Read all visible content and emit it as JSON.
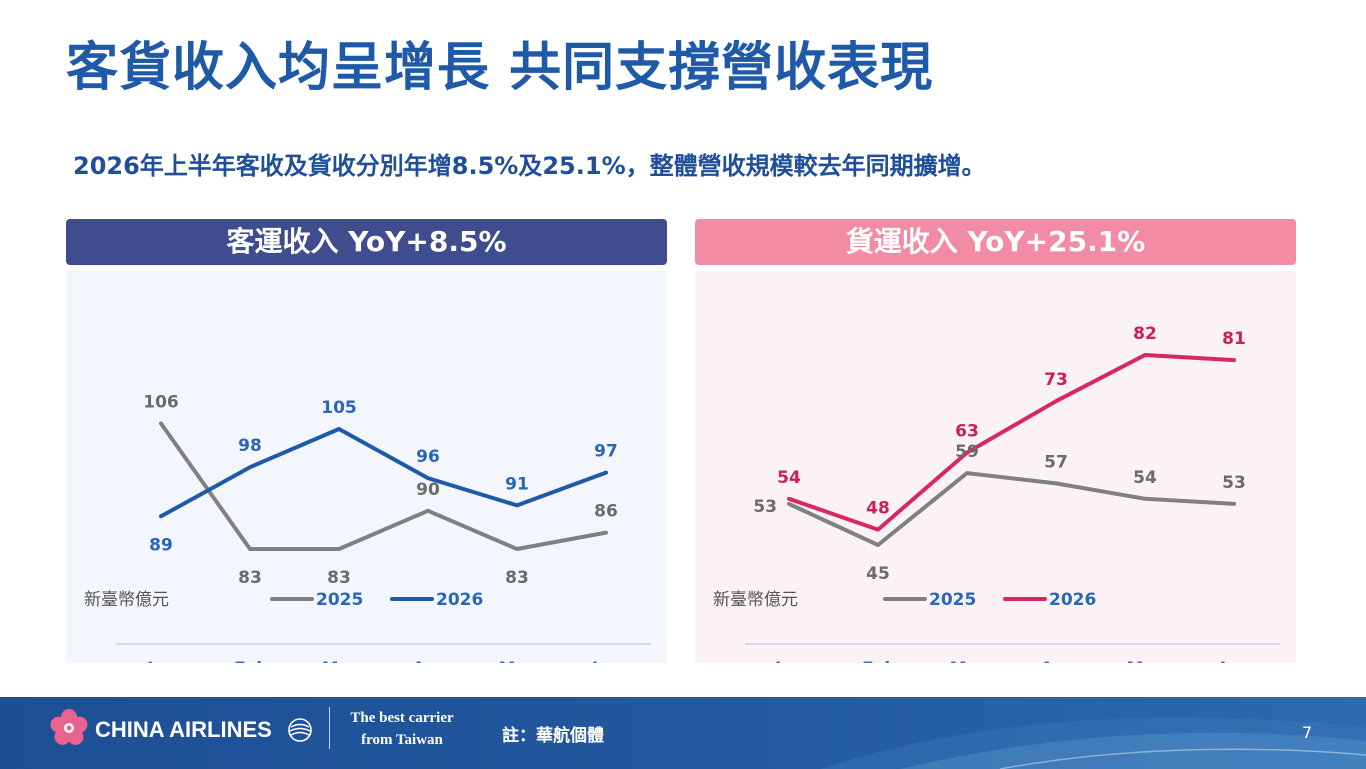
{
  "title": "客貨收入均呈增長  共同支撐營收表現",
  "subtitle": "2026年上半年客收及貨收分別年增8.5%及25.1%，整體營收規模較去年同期擴增。",
  "chart_data": [
    {
      "type": "line",
      "title": "客運收入 YoY+8.5%",
      "header_color": "#3f4d8e",
      "background_color": "#f3f6fc",
      "unit_label": "新臺幣億元",
      "categories": [
        "Jan",
        "Feb",
        "Mar",
        "Apr",
        "May",
        "Jun"
      ],
      "series": [
        {
          "name": "2025",
          "values": [
            106,
            83,
            83,
            90,
            83,
            86
          ],
          "color": "#808080",
          "label_color": "#6b6b6b"
        },
        {
          "name": "2026",
          "values": [
            89,
            98,
            105,
            96,
            91,
            97
          ],
          "color": "#1f5aa8",
          "label_color": "#2a66b8"
        }
      ],
      "legend_position": "bottom-center",
      "grid": false
    },
    {
      "type": "line",
      "title": "貨運收入 YoY+25.1%",
      "header_color": "#f28ba6",
      "background_color": "#fbf2f5",
      "unit_label": "新臺幣億元",
      "categories": [
        "Jan",
        "Feb",
        "Mar",
        "Apr",
        "May",
        "Jun"
      ],
      "series": [
        {
          "name": "2025",
          "values": [
            53,
            45,
            59,
            57,
            54,
            53
          ],
          "color": "#808080",
          "label_color": "#6b6b6b"
        },
        {
          "name": "2026",
          "values": [
            54,
            48,
            63,
            73,
            82,
            81
          ],
          "color": "#d8285d",
          "label_color": "#cc1f55"
        }
      ],
      "legend_position": "bottom-center",
      "grid": false
    }
  ],
  "footer": {
    "logo_text": "CHINA AIRLINES",
    "tagline_line1": "The best carrier",
    "tagline_line2": "from Taiwan",
    "note": "註：華航個體",
    "page_number": "7"
  },
  "icons": {
    "logo": "plum-blossom-icon",
    "alliance": "skyteam-emblem-icon"
  }
}
